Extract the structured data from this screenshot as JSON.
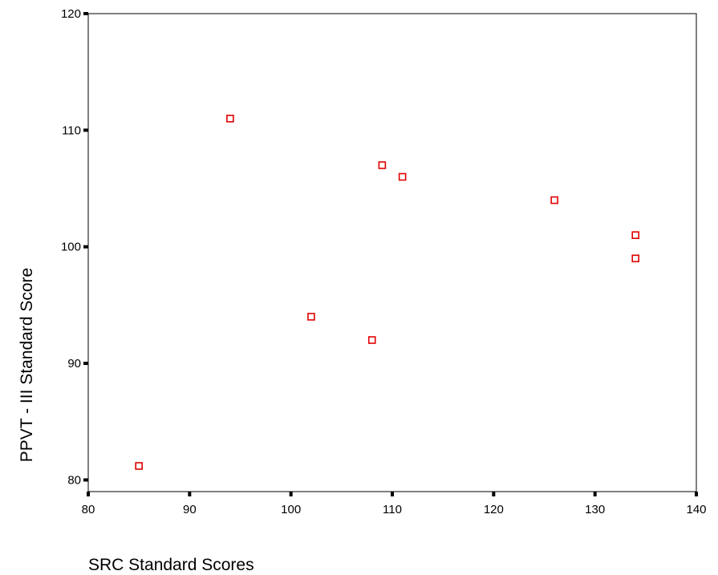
{
  "chart_data": {
    "type": "scatter",
    "title": "",
    "xlabel": "SRC Standard Scores",
    "ylabel": "PPVT - III Standard Score",
    "xlim": [
      80,
      140
    ],
    "ylim": [
      79,
      120
    ],
    "xticks": [
      80,
      90,
      100,
      110,
      120,
      130,
      140
    ],
    "yticks": [
      80,
      90,
      100,
      110,
      120
    ],
    "grid": false,
    "legend": "none",
    "marker": "open-square",
    "marker_color": "#e00000",
    "axis_color": "#000000",
    "points": [
      {
        "x": 85,
        "y": 81.2
      },
      {
        "x": 94,
        "y": 111
      },
      {
        "x": 102,
        "y": 94
      },
      {
        "x": 108,
        "y": 92
      },
      {
        "x": 109,
        "y": 107
      },
      {
        "x": 111,
        "y": 106
      },
      {
        "x": 126,
        "y": 104
      },
      {
        "x": 134,
        "y": 101
      },
      {
        "x": 134,
        "y": 99
      }
    ]
  }
}
